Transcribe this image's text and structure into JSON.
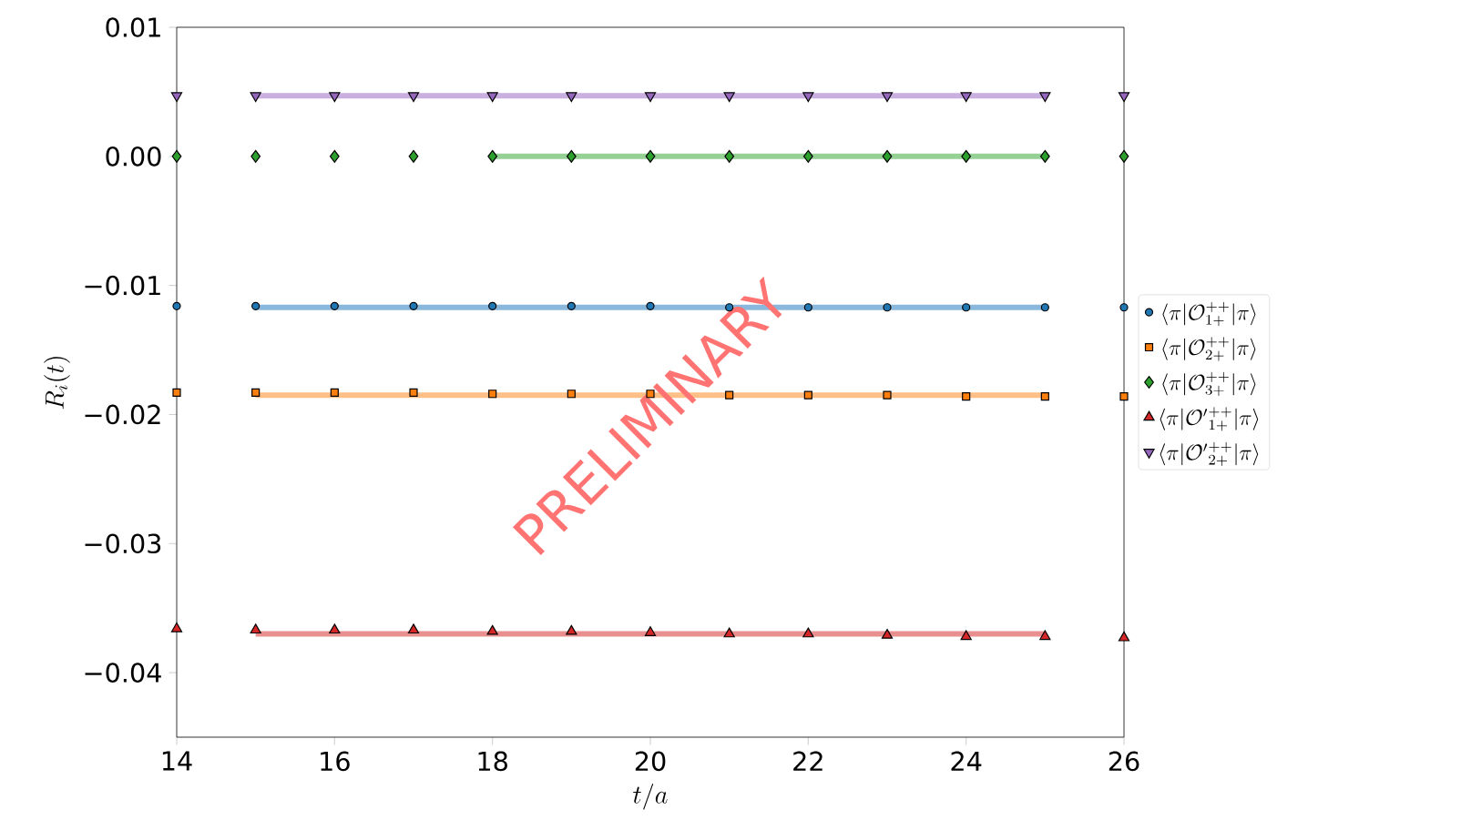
{
  "chart_data": {
    "type": "scatter",
    "xlabel": "t/a",
    "ylabel": "R_i(t)",
    "xlim": [
      14,
      26
    ],
    "xticks": [
      14,
      16,
      18,
      20,
      22,
      24,
      26
    ],
    "ylim": [
      -0.045,
      0.01
    ],
    "yticks": [
      {
        "value": 0.01,
        "label": "0.01"
      },
      {
        "value": 0,
        "label": "0.00"
      },
      {
        "value": -0.01,
        "label": "−0.01"
      },
      {
        "value": -0.02,
        "label": "−0.02"
      },
      {
        "value": -0.03,
        "label": "−0.03"
      },
      {
        "value": -0.04,
        "label": "−0.04"
      }
    ],
    "legend": "right",
    "x": [
      14,
      15,
      16,
      17,
      18,
      19,
      20,
      21,
      22,
      23,
      24,
      25,
      26
    ],
    "annotations": [
      "PRELIMINARY"
    ],
    "series": [
      {
        "name": "\\langle\\pi|\\mathcal{O}_{1+}^{++}|\\pi\\rangle",
        "color": "#1f77b4",
        "marker": "circle",
        "values": [
          -0.0116,
          -0.0116,
          -0.0116,
          -0.0116,
          -0.0116,
          -0.0116,
          -0.0116,
          -0.0117,
          -0.0117,
          -0.0117,
          -0.0117,
          -0.0117,
          -0.0117
        ]
      },
      {
        "name": "\\langle\\pi|\\mathcal{O}_{2+}^{++}|\\pi\\rangle",
        "color": "#ff7f0e",
        "marker": "square",
        "values": [
          -0.0183,
          -0.0183,
          -0.0183,
          -0.0183,
          -0.0184,
          -0.0184,
          -0.0184,
          -0.0185,
          -0.0185,
          -0.0185,
          -0.0186,
          -0.0186,
          -0.0186
        ]
      },
      {
        "name": "\\langle\\pi|\\mathcal{O}_{3+}^{++}|\\pi\\rangle",
        "color": "#2ca02c",
        "marker": "diamond",
        "values": [
          0.0,
          0.0,
          0.0,
          0.0,
          0.0,
          0.0,
          0.0,
          0.0,
          0.0,
          0.0,
          0.0,
          0.0,
          0.0
        ]
      },
      {
        "name": "\\langle\\pi|\\mathcal{O}'{}_{1+}^{++}|\\pi\\rangle",
        "color": "#d62728",
        "marker": "triangle",
        "values": [
          -0.0366,
          -0.0367,
          -0.0367,
          -0.0367,
          -0.0368,
          -0.0368,
          -0.0369,
          -0.037,
          -0.037,
          -0.0371,
          -0.0372,
          -0.0372,
          -0.0373
        ]
      },
      {
        "name": "\\langle\\pi|\\mathcal{O}'{}_{2+}^{++}|\\pi\\rangle",
        "color": "#9467bd",
        "marker": "triangle-down",
        "values": [
          0.0047,
          0.0047,
          0.0047,
          0.0047,
          0.0047,
          0.0047,
          0.0047,
          0.0047,
          0.0047,
          0.0047,
          0.0047,
          0.0047,
          0.0047
        ]
      },
      {
        "type": "line",
        "color": "#8ab8dc",
        "marker": "none",
        "x": [
          15,
          25
        ],
        "values": [
          -0.0117,
          -0.0117
        ]
      },
      {
        "type": "line",
        "color": "#ffbf86",
        "marker": "none",
        "x": [
          15,
          25
        ],
        "values": [
          -0.0185,
          -0.0185
        ]
      },
      {
        "type": "line",
        "color": "#95d095",
        "marker": "none",
        "x": [
          18,
          25
        ],
        "values": [
          0.0,
          0.0
        ]
      },
      {
        "type": "line",
        "color": "#e98f90",
        "marker": "none",
        "x": [
          15,
          25
        ],
        "values": [
          -0.037,
          -0.037
        ]
      },
      {
        "type": "line",
        "color": "#c9aee0",
        "marker": "none",
        "x": [
          15,
          25
        ],
        "values": [
          0.0047,
          0.0047
        ]
      }
    ]
  }
}
